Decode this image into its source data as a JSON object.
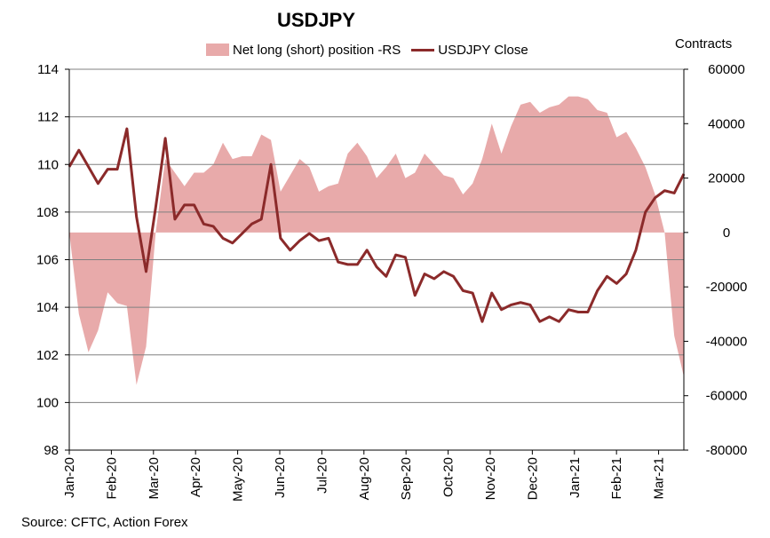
{
  "chart_data": {
    "type": "area+line",
    "title": "USDJPY",
    "source": "Source: CFTC, Action Forex",
    "right_axis_label": "Contracts",
    "left_ylim": [
      98,
      114
    ],
    "left_ticks": [
      "98",
      "100",
      "102",
      "104",
      "106",
      "108",
      "110",
      "112",
      "114"
    ],
    "right_ylim": [
      -80000,
      60000
    ],
    "right_ticks": [
      "-80000",
      "-60000",
      "-40000",
      "-20000",
      "0",
      "20000",
      "40000",
      "60000"
    ],
    "x_tick_labels": [
      "Jan-20",
      "Feb-20",
      "Mar-20",
      "Apr-20",
      "May-20",
      "Jun-20",
      "Jul-20",
      "Aug-20",
      "Sep-20",
      "Oct-20",
      "Nov-20",
      "Dec-20",
      "Jan-21",
      "Feb-21",
      "Mar-21"
    ],
    "grid": true,
    "legend_position": "top-center",
    "series": [
      {
        "name": "Net long (short) position -RS",
        "axis": "right",
        "kind": "area",
        "color": "#e8aaaa",
        "values": [
          0,
          -30000,
          -44000,
          -36000,
          -22000,
          -26000,
          -27000,
          -56000,
          -42000,
          0,
          27000,
          22000,
          17000,
          22000,
          22000,
          25000,
          33000,
          27000,
          28000,
          28000,
          36000,
          34000,
          15000,
          21000,
          27000,
          24000,
          15000,
          17000,
          18000,
          29000,
          33000,
          28000,
          20000,
          24000,
          29000,
          20000,
          22000,
          29000,
          25000,
          21000,
          20000,
          14000,
          18000,
          27000,
          40000,
          29000,
          39000,
          47000,
          48000,
          44000,
          46000,
          47000,
          50000,
          50000,
          49000,
          45000,
          44000,
          35000,
          37000,
          31000,
          24000,
          14000,
          0,
          -38000,
          -53000
        ]
      },
      {
        "name": "USDJPY Close",
        "axis": "left",
        "kind": "line",
        "color": "#8b2a2a",
        "values": [
          109.9,
          110.6,
          109.9,
          109.2,
          109.8,
          109.8,
          111.5,
          107.8,
          105.5,
          108.2,
          111.1,
          107.7,
          108.3,
          108.3,
          107.5,
          107.4,
          106.9,
          106.7,
          107.1,
          107.5,
          107.7,
          110.0,
          106.9,
          106.4,
          106.8,
          107.1,
          106.8,
          106.9,
          105.9,
          105.8,
          105.8,
          106.4,
          105.7,
          105.3,
          106.2,
          106.1,
          104.5,
          105.4,
          105.2,
          105.5,
          105.3,
          104.7,
          104.6,
          103.4,
          104.6,
          103.9,
          104.1,
          104.2,
          104.1,
          103.4,
          103.6,
          103.4,
          103.9,
          103.8,
          103.8,
          104.7,
          105.3,
          105.0,
          105.4,
          106.4,
          108.0,
          108.6,
          108.9,
          108.8,
          109.6
        ]
      }
    ]
  },
  "colors": {
    "area": "#e8aaaa",
    "line": "#8b2a2a",
    "grid": "#808080",
    "axis": "#000000"
  }
}
